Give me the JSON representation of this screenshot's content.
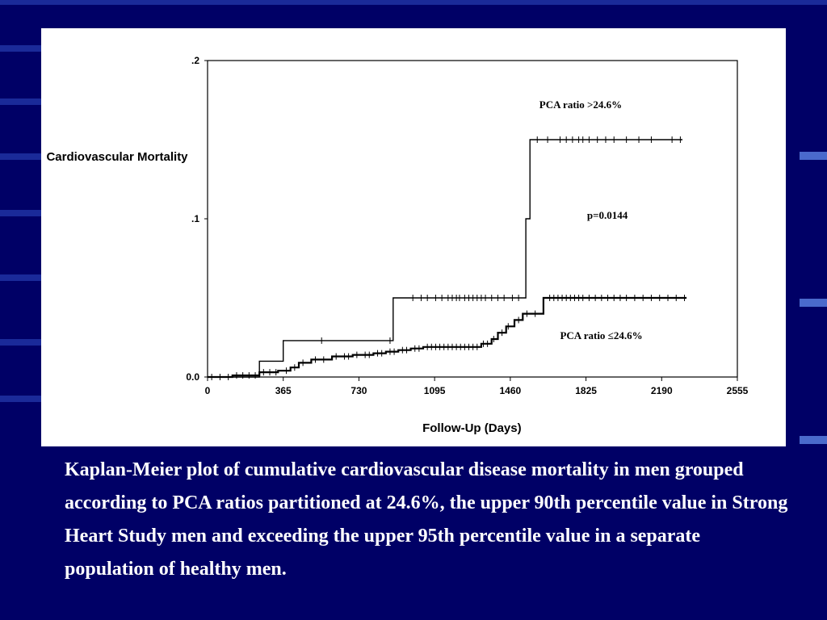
{
  "colors": {
    "background": "#000066",
    "panel": "#ffffff",
    "ink": "#000000",
    "caption": "#ffffff"
  },
  "caption": "Kaplan-Meier plot of cumulative cardiovascular disease mortality in men grouped according to PCA ratios partitioned at 24.6%, the upper 90th percentile value in Strong Heart Study men and exceeding the upper 95th percentile value in a separate population of healthy men.",
  "chart_data": {
    "type": "line",
    "title": "",
    "ylabel": "Cardiovascular Mortality",
    "xlabel": "Follow-Up (Days)",
    "xlim": [
      0,
      2555
    ],
    "ylim": [
      0,
      0.2
    ],
    "x_ticks": [
      "0",
      "365",
      "730",
      "1095",
      "1460",
      "1825",
      "2190",
      "2555"
    ],
    "x_tick_values": [
      0,
      365,
      730,
      1095,
      1460,
      1825,
      2190,
      2555
    ],
    "y_ticks": [
      "0.0",
      ".1",
      ".2"
    ],
    "y_tick_values": [
      0,
      0.1,
      0.2
    ],
    "grid": false,
    "annotations": [
      {
        "text": "PCA ratio >24.6%",
        "x": 1600,
        "y": 0.17
      },
      {
        "text": "p=0.0144",
        "x": 1830,
        "y": 0.1
      },
      {
        "text": "PCA ratio ≤24.6%",
        "x": 1700,
        "y": 0.024
      }
    ],
    "series": [
      {
        "name": "PCA ratio >24.6%",
        "steps": [
          [
            0,
            0
          ],
          [
            250,
            0
          ],
          [
            250,
            0.01
          ],
          [
            365,
            0.01
          ],
          [
            365,
            0.023
          ],
          [
            895,
            0.023
          ],
          [
            895,
            0.05
          ],
          [
            1535,
            0.05
          ],
          [
            1535,
            0.1
          ],
          [
            1555,
            0.1
          ],
          [
            1555,
            0.15
          ],
          [
            2290,
            0.15
          ]
        ],
        "censored": [
          550,
          880,
          990,
          1030,
          1060,
          1100,
          1130,
          1160,
          1180,
          1200,
          1215,
          1240,
          1260,
          1280,
          1300,
          1320,
          1340,
          1370,
          1400,
          1430,
          1470,
          1500,
          1590,
          1640,
          1700,
          1730,
          1760,
          1790,
          1810,
          1840,
          1880,
          1920,
          1960,
          2020,
          2080,
          2140,
          2240,
          2280
        ]
      },
      {
        "name": "PCA ratio ≤24.6%",
        "steps": [
          [
            0,
            0
          ],
          [
            120,
            0
          ],
          [
            120,
            0.001
          ],
          [
            250,
            0.001
          ],
          [
            250,
            0.003
          ],
          [
            340,
            0.003
          ],
          [
            340,
            0.004
          ],
          [
            400,
            0.004
          ],
          [
            400,
            0.006
          ],
          [
            440,
            0.006
          ],
          [
            440,
            0.009
          ],
          [
            500,
            0.009
          ],
          [
            500,
            0.011
          ],
          [
            600,
            0.011
          ],
          [
            600,
            0.013
          ],
          [
            700,
            0.013
          ],
          [
            700,
            0.014
          ],
          [
            800,
            0.014
          ],
          [
            800,
            0.015
          ],
          [
            860,
            0.015
          ],
          [
            860,
            0.016
          ],
          [
            920,
            0.016
          ],
          [
            920,
            0.017
          ],
          [
            980,
            0.017
          ],
          [
            980,
            0.018
          ],
          [
            1040,
            0.018
          ],
          [
            1040,
            0.019
          ],
          [
            1320,
            0.019
          ],
          [
            1320,
            0.021
          ],
          [
            1370,
            0.021
          ],
          [
            1370,
            0.024
          ],
          [
            1400,
            0.024
          ],
          [
            1400,
            0.028
          ],
          [
            1440,
            0.028
          ],
          [
            1440,
            0.032
          ],
          [
            1480,
            0.032
          ],
          [
            1480,
            0.036
          ],
          [
            1520,
            0.036
          ],
          [
            1520,
            0.04
          ],
          [
            1620,
            0.04
          ],
          [
            1620,
            0.05
          ],
          [
            2310,
            0.05
          ]
        ],
        "censored": [
          20,
          60,
          100,
          140,
          170,
          200,
          230,
          270,
          300,
          330,
          380,
          420,
          460,
          520,
          560,
          620,
          660,
          680,
          720,
          760,
          780,
          820,
          840,
          880,
          900,
          940,
          960,
          1000,
          1020,
          1060,
          1080,
          1100,
          1120,
          1140,
          1160,
          1180,
          1200,
          1220,
          1240,
          1260,
          1280,
          1300,
          1330,
          1350,
          1380,
          1420,
          1450,
          1500,
          1540,
          1580,
          1650,
          1670,
          1690,
          1710,
          1730,
          1750,
          1770,
          1790,
          1810,
          1840,
          1870,
          1900,
          1930,
          1960,
          1990,
          2020,
          2060,
          2100,
          2140,
          2180,
          2220,
          2260,
          2300
        ]
      }
    ]
  }
}
